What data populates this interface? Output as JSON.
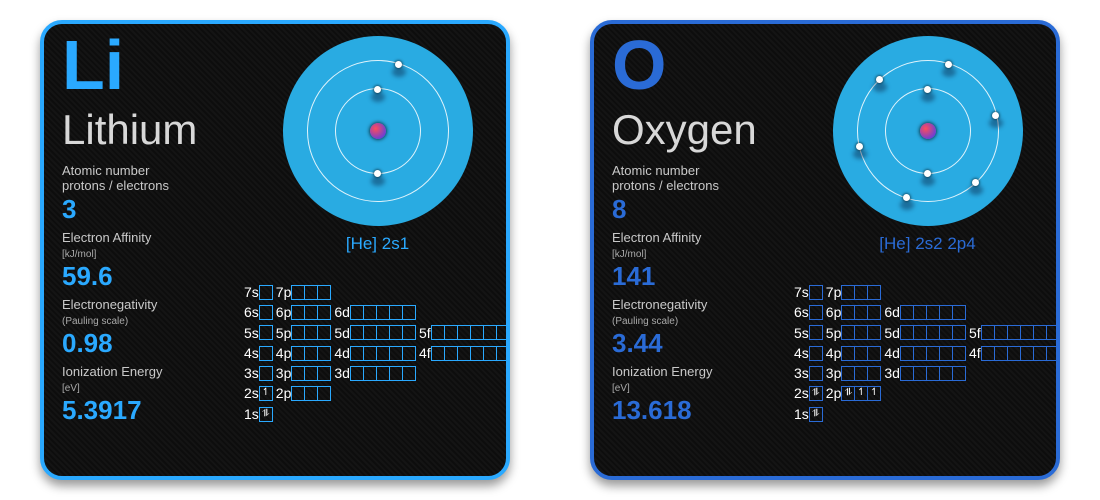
{
  "colors": {
    "lithium_accent": "#2aa9ff",
    "oxygen_accent": "#2a6bd6",
    "atom_bg": "#29abe2",
    "bg": "#ffffff"
  },
  "labels": {
    "atomic_number": "Atomic number",
    "protons_electrons": "protons / electrons",
    "electron_affinity": "Electron Affinity",
    "ea_unit": "[kJ/mol]",
    "electronegativity": "Electronegativity",
    "en_unit": "(Pauling scale)",
    "ionization": "Ionization Energy",
    "ion_unit": "[eV]"
  },
  "orbital_rows": [
    [
      {
        "l": "7s",
        "n": 1
      },
      {
        "l": "7p",
        "n": 3
      }
    ],
    [
      {
        "l": "6s",
        "n": 1
      },
      {
        "l": "6p",
        "n": 3
      },
      {
        "l": "6d",
        "n": 5
      }
    ],
    [
      {
        "l": "5s",
        "n": 1
      },
      {
        "l": "5p",
        "n": 3
      },
      {
        "l": "5d",
        "n": 5
      },
      {
        "l": "5f",
        "n": 7
      }
    ],
    [
      {
        "l": "4s",
        "n": 1
      },
      {
        "l": "4p",
        "n": 3
      },
      {
        "l": "4d",
        "n": 5
      },
      {
        "l": "4f",
        "n": 7
      }
    ],
    [
      {
        "l": "3s",
        "n": 1
      },
      {
        "l": "3p",
        "n": 3
      },
      {
        "l": "3d",
        "n": 5
      }
    ],
    [
      {
        "l": "2s",
        "n": 1
      },
      {
        "l": "2p",
        "n": 3
      }
    ],
    [
      {
        "l": "1s",
        "n": 1
      }
    ]
  ],
  "elements": [
    {
      "id": "lithium",
      "symbol": "Li",
      "name": "Lithium",
      "accent": "#2aa9ff",
      "atomic_number": "3",
      "electron_affinity": "59.6",
      "electronegativity": "0.98",
      "ionization": "5.3917",
      "config_text": "[He] 2s1",
      "shells": [
        2,
        1
      ],
      "filled": {
        "1s": "⥮",
        "2s": "↿"
      }
    },
    {
      "id": "oxygen",
      "symbol": "O",
      "name": "Oxygen",
      "accent": "#2a6bd6",
      "atomic_number": "8",
      "electron_affinity": "141",
      "electronegativity": "3.44",
      "ionization": "13.618",
      "config_text": "[He] 2s2 2p4",
      "shells": [
        2,
        6
      ],
      "filled": {
        "1s": "⥮",
        "2s": "⥮",
        "2p": [
          "⥮",
          "↿",
          "↿"
        ]
      }
    }
  ]
}
